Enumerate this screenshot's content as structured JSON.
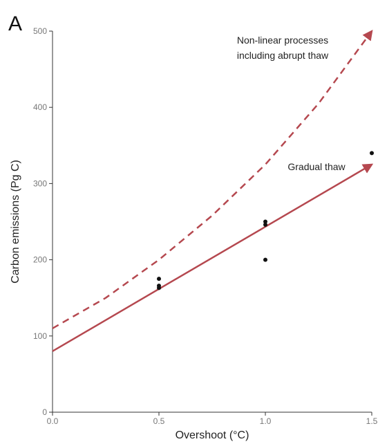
{
  "panel_label": "A",
  "chart_data": {
    "type": "line",
    "xlabel": "Overshoot (°C)",
    "ylabel": "Carbon emissions (Pg C)",
    "xlim": [
      0.0,
      1.5
    ],
    "ylim": [
      0,
      500
    ],
    "x_ticks": [
      "0.0",
      "0.5",
      "1.0",
      "1.5"
    ],
    "y_ticks": [
      "0",
      "100",
      "200",
      "300",
      "400",
      "500"
    ],
    "grid": false,
    "series": [
      {
        "label_lines": [
          "Non-linear processes",
          "including abrupt thaw"
        ],
        "style": "dashed",
        "color": "#b5484f",
        "x": [
          0.0,
          0.25,
          0.5,
          0.75,
          1.0,
          1.25,
          1.5
        ],
        "y": [
          110,
          150,
          200,
          258,
          325,
          405,
          500
        ]
      },
      {
        "label_lines": [
          "Gradual thaw"
        ],
        "style": "solid",
        "color": "#b5484f",
        "x": [
          0.0,
          1.5
        ],
        "y": [
          80,
          325
        ]
      }
    ],
    "points": {
      "color": "#111111",
      "x": [
        0.5,
        0.5,
        0.5,
        1.0,
        1.0,
        1.0,
        1.5
      ],
      "y": [
        175,
        166,
        163,
        250,
        246,
        200,
        340
      ]
    }
  }
}
